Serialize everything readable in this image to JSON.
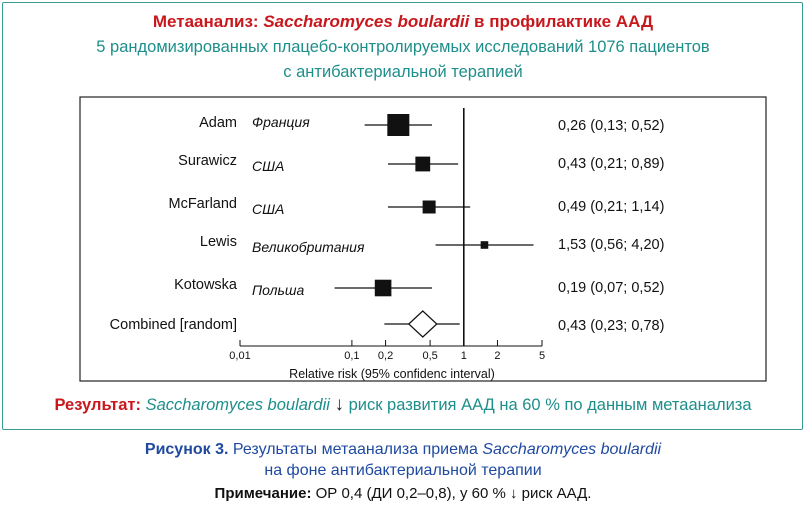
{
  "title": {
    "prefix": "Метаанализ:",
    "species": "Saccharomyces boulardii",
    "suffix": "в профилактике ААД"
  },
  "subtitle": {
    "line1": "5 рандомизированных плацебо-контролируемых исследований 1076 пациентов",
    "line2": "с антибактериальной терапией"
  },
  "chart_data": {
    "type": "forest",
    "title": "Метаанализ: Saccharomyces boulardii в профилактике ААД",
    "xlabel": "Relative risk (95% confidenc interval)",
    "xscale": "log",
    "xlim": [
      0.01,
      5
    ],
    "xticks": [
      0.01,
      0.1,
      0.2,
      0.5,
      1,
      2,
      5
    ],
    "xtick_labels": [
      "0,01",
      "0,1",
      "0,2",
      "0,5",
      "1",
      "2",
      "5"
    ],
    "reference_line": 1,
    "studies": [
      {
        "author": "Adam",
        "country": "Франция",
        "rr": 0.26,
        "low": 0.13,
        "high": 0.52,
        "label": "0,26 (0,13; 0,52)",
        "weight": 1.0
      },
      {
        "author": "Surawicz",
        "country": "США",
        "rr": 0.43,
        "low": 0.21,
        "high": 0.89,
        "label": "0,43  (0,21; 0,89)",
        "weight": 0.6
      },
      {
        "author": "McFarland",
        "country": "США",
        "rr": 0.49,
        "low": 0.21,
        "high": 1.14,
        "label": "0,49 (0,21; 1,14)",
        "weight": 0.5
      },
      {
        "author": "Lewis",
        "country": "Великобритания",
        "rr": 1.53,
        "low": 0.56,
        "high": 4.2,
        "label": "1,53 (0,56; 4,20)",
        "weight": 0.2
      },
      {
        "author": "Kotowska",
        "country": "Польша",
        "rr": 0.19,
        "low": 0.07,
        "high": 0.52,
        "label": "0,19  (0,07; 0,52)",
        "weight": 0.7
      }
    ],
    "combined": {
      "author": "Combined [random]",
      "rr": 0.43,
      "low": 0.23,
      "high": 0.78,
      "label": "0,43 (0,23; 0,78)"
    },
    "colors": {
      "marker": "#111111",
      "line": "#111111",
      "frame": "#222222"
    }
  },
  "result": {
    "label": "Результат:",
    "species": "Saccharomyces boulardii",
    "arrow": "↓",
    "text": "риск развития ААД  на 60 % по данным метаанализа"
  },
  "caption": {
    "label": "Рисунок 3.",
    "text_pre": "Результаты метаанализа приема",
    "species": "Saccharomyces boulardii",
    "line2": "на фоне антибактериальной терапии"
  },
  "note": {
    "label": "Примечание:",
    "text": "ОР 0,4 (ДИ 0,2–0,8), у 60 % ↓ риск ААД."
  },
  "colors": {
    "title_red": "#c8181e",
    "teal": "#1e8e8a",
    "caption_blue": "#1f4aa0"
  }
}
